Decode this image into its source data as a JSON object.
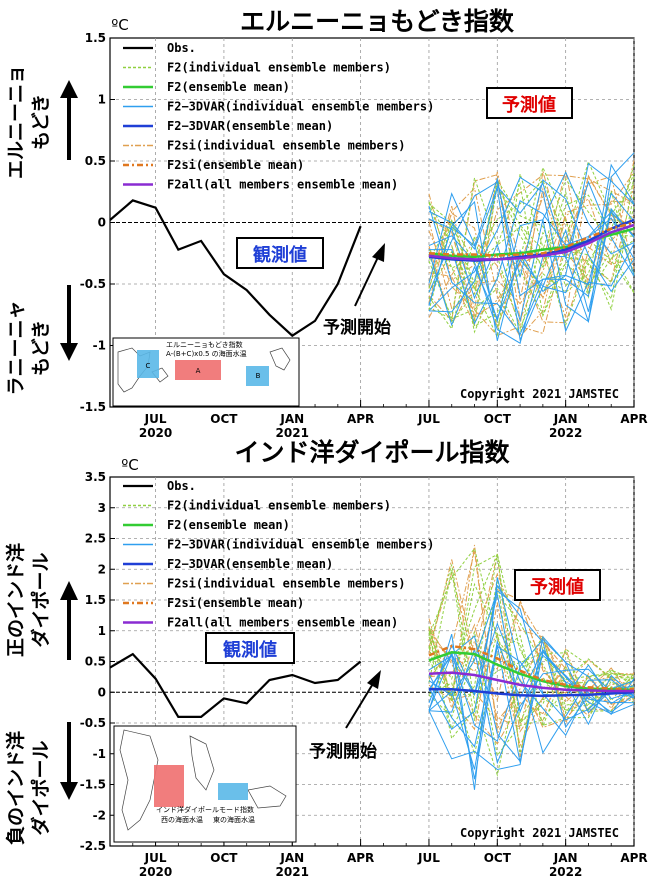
{
  "colors": {
    "obs": "#000000",
    "f2_member": "#90d040",
    "f2_mean": "#33cc33",
    "f3_member": "#2f9fef",
    "f3_mean": "#1f3fd6",
    "si_member": "#e0a050",
    "si_mean": "#e07820",
    "all_mean": "#8a2bd2",
    "forecast_box": "#e00000",
    "observed_box": "#1f3fd6",
    "map_box_a": "#ef6f6f",
    "map_box_b": "#5ab8e8"
  },
  "chart_data": [
    {
      "type": "line",
      "id": "elnino_modoki",
      "title": "エルニーニョもどき指数",
      "unit": "ºC",
      "ylim": [
        -1.5,
        1.5
      ],
      "yticks": [
        -1.5,
        -1,
        -0.5,
        0,
        0.5,
        1,
        1.5
      ],
      "ytick_labels": [
        "-1.5",
        "-1",
        "-0.5",
        "0",
        "0.5",
        "1",
        "1.5"
      ],
      "x_range": [
        "2020-05",
        "2022-04"
      ],
      "x_ticks": [
        {
          "month": "2020-07",
          "label": "JUL",
          "year": "2020"
        },
        {
          "month": "2020-10",
          "label": "OCT",
          "year": ""
        },
        {
          "month": "2021-01",
          "label": "JAN",
          "year": "2021"
        },
        {
          "month": "2021-04",
          "label": "APR",
          "year": ""
        },
        {
          "month": "2021-07",
          "label": "JUL",
          "year": ""
        },
        {
          "month": "2021-10",
          "label": "OCT",
          "year": ""
        },
        {
          "month": "2022-01",
          "label": "JAN",
          "year": "2022"
        },
        {
          "month": "2022-04",
          "label": "APR",
          "year": ""
        }
      ],
      "grid": true,
      "zero_line": true,
      "legend_position": "top-left",
      "upper_label": [
        "エルニーニョ",
        "もどき"
      ],
      "lower_label": [
        "ラニーニャ",
        "もどき"
      ],
      "observed_label": "観測値",
      "forecast_label": "予測値",
      "forecast_start_label": "予測開始",
      "copyright": "Copyright 2021 JAMSTEC",
      "inset": {
        "caption_line1": "エルニーニョもどき指数",
        "caption_line2": "A-(B+C)x0.5 の海面水温",
        "boxes": [
          "A",
          "B",
          "C"
        ]
      },
      "observed": {
        "name": "Obs.",
        "x": [
          "2020-05",
          "2020-06",
          "2020-07",
          "2020-08",
          "2020-09",
          "2020-10",
          "2020-11",
          "2020-12",
          "2021-01",
          "2021-02",
          "2021-03",
          "2021-04"
        ],
        "values": [
          0.02,
          0.18,
          0.12,
          -0.22,
          -0.15,
          -0.42,
          -0.55,
          -0.75,
          -0.92,
          -0.8,
          -0.5,
          -0.03
        ]
      },
      "forecast_x": [
        "2021-07",
        "2021-08",
        "2021-09",
        "2021-10",
        "2021-11",
        "2021-12",
        "2022-01",
        "2022-02",
        "2022-03",
        "2022-04"
      ],
      "series": [
        {
          "name": "F2(individual ensemble members)",
          "style": "f2_member"
        },
        {
          "name": "F2(ensemble mean)",
          "style": "f2_mean",
          "values": [
            -0.25,
            -0.27,
            -0.28,
            -0.26,
            -0.25,
            -0.22,
            -0.2,
            -0.15,
            -0.1,
            -0.05
          ]
        },
        {
          "name": "F2−3DVAR(individual ensemble members)",
          "style": "f3_member"
        },
        {
          "name": "F2−3DVAR(ensemble mean)",
          "style": "f3_mean",
          "values": [
            -0.28,
            -0.3,
            -0.31,
            -0.3,
            -0.28,
            -0.26,
            -0.22,
            -0.15,
            -0.05,
            0.02
          ]
        },
        {
          "name": "F2si(individual ensemble members)",
          "style": "si_member"
        },
        {
          "name": "F2si(ensemble mean)",
          "style": "si_mean",
          "values": [
            -0.25,
            -0.26,
            -0.26,
            -0.27,
            -0.26,
            -0.25,
            -0.2,
            -0.12,
            -0.05,
            0.0
          ]
        },
        {
          "name": "F2all(all members ensemble mean)",
          "style": "all_mean",
          "values": [
            -0.27,
            -0.29,
            -0.3,
            -0.3,
            -0.29,
            -0.27,
            -0.24,
            -0.17,
            -0.08,
            -0.02
          ]
        }
      ],
      "member_spread": {
        "low": [
          -0.9,
          -0.95,
          -1.05,
          -1.05,
          -1.1,
          -1.1,
          -1.1,
          -1.05,
          -0.9,
          -0.7
        ],
        "high": [
          0.35,
          0.45,
          0.55,
          0.6,
          0.55,
          0.5,
          0.5,
          0.5,
          0.55,
          0.6
        ]
      }
    },
    {
      "type": "line",
      "id": "iod",
      "title": "インド洋ダイポール指数",
      "unit": "ºC",
      "ylim": [
        -2.5,
        3.5
      ],
      "yticks": [
        -2.5,
        -2,
        -1.5,
        -1,
        -0.5,
        0,
        0.5,
        1,
        1.5,
        2,
        2.5,
        3,
        3.5
      ],
      "ytick_labels": [
        "-2.5",
        "-2",
        "-1.5",
        "-1",
        "-0.5",
        "0",
        "0.5",
        "1",
        "1.5",
        "2",
        "2.5",
        "3",
        "3.5"
      ],
      "x_range": [
        "2020-05",
        "2022-04"
      ],
      "x_ticks": [
        {
          "month": "2020-07",
          "label": "JUL",
          "year": "2020"
        },
        {
          "month": "2020-10",
          "label": "OCT",
          "year": ""
        },
        {
          "month": "2021-01",
          "label": "JAN",
          "year": "2021"
        },
        {
          "month": "2021-04",
          "label": "APR",
          "year": ""
        },
        {
          "month": "2021-07",
          "label": "JUL",
          "year": ""
        },
        {
          "month": "2021-10",
          "label": "OCT",
          "year": ""
        },
        {
          "month": "2022-01",
          "label": "JAN",
          "year": "2022"
        },
        {
          "month": "2022-04",
          "label": "APR",
          "year": ""
        }
      ],
      "grid": true,
      "zero_line": true,
      "legend_position": "top-left",
      "upper_label": [
        "正のインド洋",
        "ダイポール"
      ],
      "lower_label": [
        "負のインド洋",
        "ダイポール"
      ],
      "observed_label": "観測値",
      "forecast_label": "予測値",
      "forecast_start_label": "予測開始",
      "copyright": "Copyright 2021 JAMSTEC",
      "inset": {
        "caption_line1": "インド洋ダイポールモード指数",
        "caption_line2a": "西の海面水温",
        "caption_line2b": "東の海面水温"
      },
      "observed": {
        "name": "Obs.",
        "x": [
          "2020-05",
          "2020-06",
          "2020-07",
          "2020-08",
          "2020-09",
          "2020-10",
          "2020-11",
          "2020-12",
          "2021-01",
          "2021-02",
          "2021-03",
          "2021-04"
        ],
        "values": [
          0.4,
          0.62,
          0.22,
          -0.4,
          -0.4,
          -0.1,
          -0.18,
          0.2,
          0.28,
          0.15,
          0.2,
          0.5
        ]
      },
      "forecast_x": [
        "2021-07",
        "2021-08",
        "2021-09",
        "2021-10",
        "2021-11",
        "2021-12",
        "2022-01",
        "2022-02",
        "2022-03",
        "2022-04"
      ],
      "series": [
        {
          "name": "F2(individual ensemble members)",
          "style": "f2_member"
        },
        {
          "name": "F2(ensemble mean)",
          "style": "f2_mean",
          "values": [
            0.52,
            0.65,
            0.62,
            0.45,
            0.3,
            0.18,
            0.1,
            0.06,
            0.05,
            0.04
          ]
        },
        {
          "name": "F2−3DVAR(individual ensemble members)",
          "style": "f3_member"
        },
        {
          "name": "F2−3DVAR(ensemble mean)",
          "style": "f3_mean",
          "values": [
            0.05,
            0.05,
            0.02,
            -0.02,
            -0.05,
            -0.06,
            -0.05,
            -0.04,
            -0.02,
            0.0
          ]
        },
        {
          "name": "F2si(individual ensemble members)",
          "style": "si_member"
        },
        {
          "name": "F2si(ensemble mean)",
          "style": "si_mean",
          "values": [
            0.6,
            0.75,
            0.7,
            0.55,
            0.35,
            0.2,
            0.12,
            0.08,
            0.06,
            0.05
          ]
        },
        {
          "name": "F2all(all members ensemble mean)",
          "style": "all_mean",
          "values": [
            0.3,
            0.32,
            0.28,
            0.2,
            0.12,
            0.07,
            0.04,
            0.03,
            0.02,
            0.02
          ]
        }
      ],
      "member_spread": {
        "low": [
          -0.3,
          -1.2,
          -1.7,
          -2.25,
          -1.9,
          -1.6,
          -0.9,
          -0.6,
          -0.45,
          -0.3
        ],
        "high": [
          1.2,
          2.2,
          2.4,
          2.25,
          1.5,
          0.9,
          0.7,
          0.55,
          0.4,
          0.35
        ]
      }
    }
  ]
}
